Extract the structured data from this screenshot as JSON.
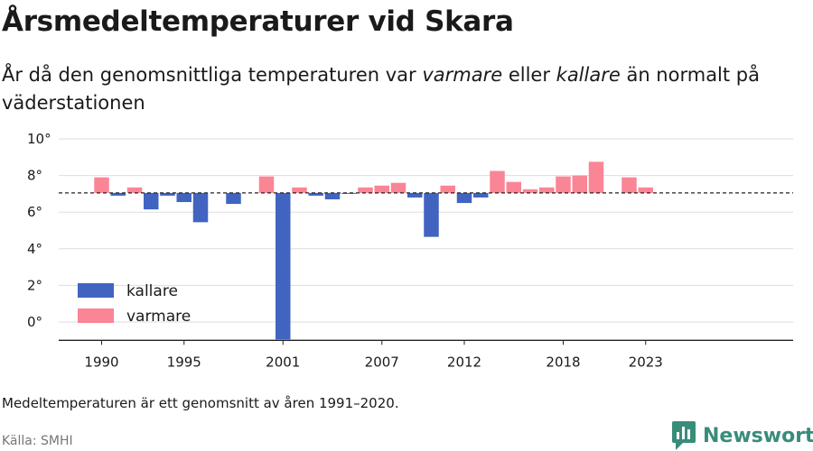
{
  "header": {
    "title": "Årsmedeltemperaturer vid Skara",
    "subtitle_parts": [
      "År då den genomsnittliga temperaturen var ",
      "varmare",
      " eller ",
      "kallare",
      " än normalt på väderstationen"
    ]
  },
  "footer": {
    "note": "Medeltemperaturen är ett genomsnitt av åren 1991–2020.",
    "source": "Källa: SMHI",
    "brand": "Newsworthy"
  },
  "colors": {
    "cold": "#4164c1",
    "warm": "#fa8595",
    "brand": "#3a8c7a"
  },
  "chart_data": {
    "type": "bar",
    "x_tick_labels": [
      "1990",
      "1995",
      "2001",
      "2007",
      "2012",
      "2018",
      "2023"
    ],
    "y_tick_labels": [
      "0°",
      "2°",
      "4°",
      "6°",
      "8°",
      "10°"
    ],
    "y_ticks": [
      0,
      2,
      4,
      6,
      8,
      10
    ],
    "ylim": [
      -1,
      10
    ],
    "normal": 7.05,
    "legend": [
      {
        "key": "cold",
        "label": "kallare"
      },
      {
        "key": "warm",
        "label": "varmare"
      }
    ],
    "years": [
      1990,
      1991,
      1992,
      1993,
      1994,
      1995,
      1996,
      1997,
      1998,
      1999,
      2000,
      2001,
      2002,
      2003,
      2004,
      2005,
      2006,
      2007,
      2008,
      2009,
      2010,
      2011,
      2012,
      2013,
      2014,
      2015,
      2016,
      2017,
      2018,
      2019,
      2020,
      2021,
      2022,
      2023
    ],
    "values": [
      7.9,
      6.9,
      7.35,
      6.15,
      6.9,
      6.55,
      5.45,
      null,
      6.45,
      null,
      7.95,
      -0.95,
      7.35,
      6.9,
      6.7,
      7.0,
      7.35,
      7.45,
      7.6,
      6.8,
      4.65,
      7.45,
      6.5,
      6.8,
      8.25,
      7.65,
      7.25,
      7.35,
      7.95,
      8.0,
      8.75,
      null,
      7.9,
      7.35
    ]
  }
}
